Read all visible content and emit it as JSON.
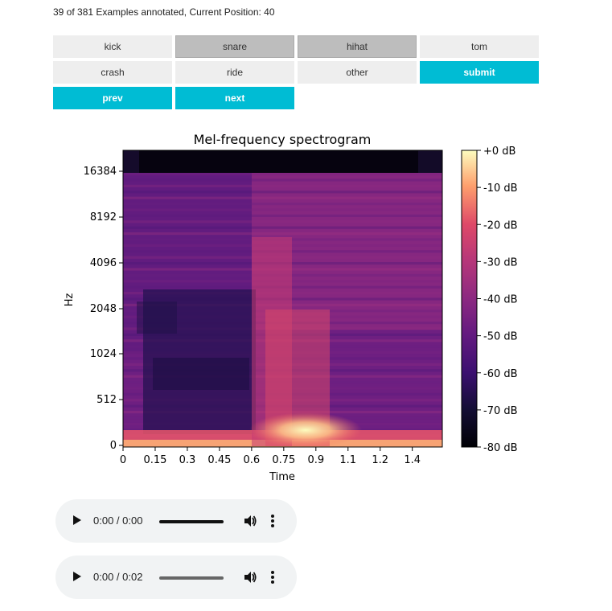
{
  "status_text": "39 of 381 Examples annotated, Current Position: 40",
  "buttons": {
    "kick": "kick",
    "snare": "snare",
    "hihat": "hihat",
    "tom": "tom",
    "crash": "crash",
    "ride": "ride",
    "other": "other",
    "submit": "submit",
    "prev": "prev",
    "next": "next"
  },
  "selected_labels": [
    "snare",
    "hihat"
  ],
  "colors": {
    "accent": "#00bcd4",
    "button_bg": "#eeeeee",
    "button_selected": "#bdbdbd"
  },
  "chart_data": {
    "type": "heatmap",
    "title": "Mel-frequency spectrogram",
    "xlabel": "Time",
    "ylabel": "Hz",
    "x_ticks": [
      "0",
      "0.15",
      "0.3",
      "0.45",
      "0.6",
      "0.75",
      "0.9",
      "1.1",
      "1.2",
      "1.4"
    ],
    "y_ticks": [
      "0",
      "512",
      "1024",
      "2048",
      "4096",
      "8192",
      "16384"
    ],
    "xlim": [
      0,
      1.49
    ],
    "colorbar": {
      "label_unit": "dB",
      "ticks": [
        "+0 dB",
        "-10 dB",
        "-20 dB",
        "-30 dB",
        "-40 dB",
        "-50 dB",
        "-60 dB",
        "-70 dB",
        "-80 dB"
      ],
      "range": [
        -80,
        0
      ],
      "colormap": "magma"
    },
    "onset_time": 0.6,
    "peak_region": {
      "time": [
        0.6,
        0.9
      ],
      "hz": [
        0,
        512
      ]
    }
  },
  "audio_players": [
    {
      "time": "0:00 / 0:00"
    },
    {
      "time": "0:00 / 0:02"
    }
  ]
}
